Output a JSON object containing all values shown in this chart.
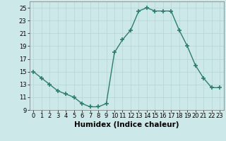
{
  "x": [
    0,
    1,
    2,
    3,
    4,
    5,
    6,
    7,
    8,
    9,
    10,
    11,
    12,
    13,
    14,
    15,
    16,
    17,
    18,
    19,
    20,
    21,
    22,
    23
  ],
  "y": [
    15,
    14,
    13,
    12,
    11.5,
    11,
    10,
    9.5,
    9.5,
    10,
    18,
    20,
    21.5,
    24.5,
    25,
    24.5,
    24.5,
    24.5,
    21.5,
    19,
    16,
    14,
    12.5,
    12.5
  ],
  "line_color": "#2e7d6e",
  "marker": "+",
  "marker_size": 4,
  "linewidth": 1.0,
  "bg_color": "#cce8e8",
  "grid_color": "#b8d8d8",
  "xlabel": "Humidex (Indice chaleur)",
  "xlabel_fontsize": 7.5,
  "xlabel_bold": true,
  "ylim": [
    9,
    26
  ],
  "xlim": [
    -0.5,
    23.5
  ],
  "yticks": [
    9,
    11,
    13,
    15,
    17,
    19,
    21,
    23,
    25
  ],
  "xtick_labels": [
    "0",
    "1",
    "2",
    "3",
    "4",
    "5",
    "6",
    "7",
    "8",
    "9",
    "10",
    "11",
    "12",
    "13",
    "14",
    "15",
    "16",
    "17",
    "18",
    "19",
    "20",
    "21",
    "22",
    "23"
  ],
  "tick_fontsize": 6,
  "title": ""
}
